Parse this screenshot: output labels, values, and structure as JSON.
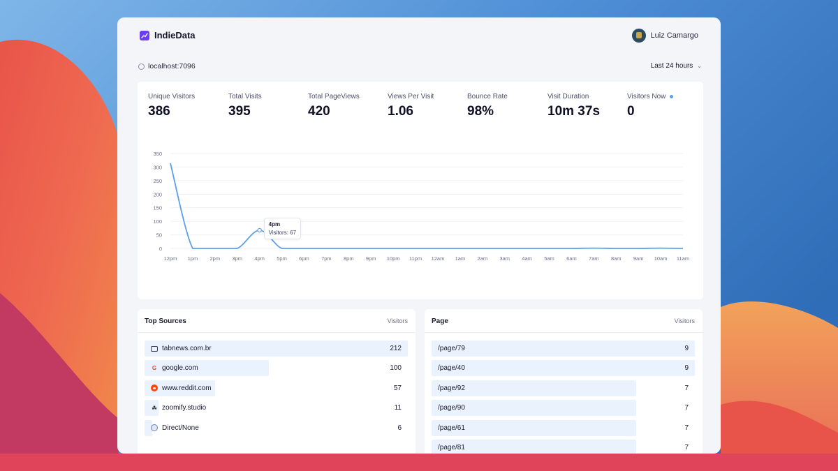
{
  "app": {
    "name": "IndieData",
    "user": "Luiz Camargo"
  },
  "site": "localhost:7096",
  "range_label": "Last 24 hours",
  "icons": {
    "logo": "chart-logo-icon",
    "site": "globe-icon",
    "range": "chevron-down-icon",
    "live": "live-dot-icon",
    "avatar": "avatar"
  },
  "colors": {
    "accent": "#6d3ef0",
    "line": "#5ba0ea",
    "bar": "#eaf2fd"
  },
  "kpis": [
    {
      "label": "Unique Visitors",
      "value": "386"
    },
    {
      "label": "Total Visits",
      "value": "395"
    },
    {
      "label": "Total PageViews",
      "value": "420"
    },
    {
      "label": "Views Per Visit",
      "value": "1.06"
    },
    {
      "label": "Bounce Rate",
      "value": "98%"
    },
    {
      "label": "Visit Duration",
      "value": "10m 37s"
    },
    {
      "label": "Visitors Now",
      "value": "0"
    }
  ],
  "chart_data": {
    "type": "line",
    "title": "",
    "xlabel": "",
    "ylabel": "",
    "categories": [
      "12pm",
      "1pm",
      "2pm",
      "3pm",
      "4pm",
      "5pm",
      "6pm",
      "7pm",
      "8pm",
      "9pm",
      "10pm",
      "11pm",
      "12am",
      "1am",
      "2am",
      "3am",
      "4am",
      "5am",
      "6am",
      "7am",
      "8am",
      "9am",
      "10am",
      "11am"
    ],
    "yticks": [
      "0",
      "50",
      "100",
      "150",
      "200",
      "250",
      "300",
      "350"
    ],
    "ylim": [
      0,
      350
    ],
    "grid": true,
    "series": [
      {
        "values": [
          314,
          0,
          0,
          0,
          67,
          0,
          0,
          0,
          0,
          0,
          0,
          0,
          0,
          0,
          0,
          0,
          0,
          0,
          0,
          1,
          0,
          0,
          1,
          0
        ]
      }
    ],
    "tooltip": {
      "title": "4pm",
      "text": "Visitors: 67"
    }
  },
  "sources": {
    "title": "Top Sources",
    "column": "Visitors",
    "rows": [
      {
        "label": "tabnews.com.br",
        "value": "212",
        "icon": "browser-tab-icon"
      },
      {
        "label": "google.com",
        "value": "100",
        "icon": "google-icon"
      },
      {
        "label": "www.reddit.com",
        "value": "57",
        "icon": "reddit-icon"
      },
      {
        "label": "zoomify.studio",
        "value": "11",
        "icon": "zoomify-icon"
      },
      {
        "label": "Direct/None",
        "value": "6",
        "icon": "globe-icon"
      }
    ]
  },
  "pages": {
    "title": "Page",
    "column": "Visitors",
    "rows": [
      {
        "label": "/page/79",
        "value": "9"
      },
      {
        "label": "/page/40",
        "value": "9"
      },
      {
        "label": "/page/92",
        "value": "7"
      },
      {
        "label": "/page/90",
        "value": "7"
      },
      {
        "label": "/page/61",
        "value": "7"
      },
      {
        "label": "/page/81",
        "value": "7"
      }
    ]
  }
}
